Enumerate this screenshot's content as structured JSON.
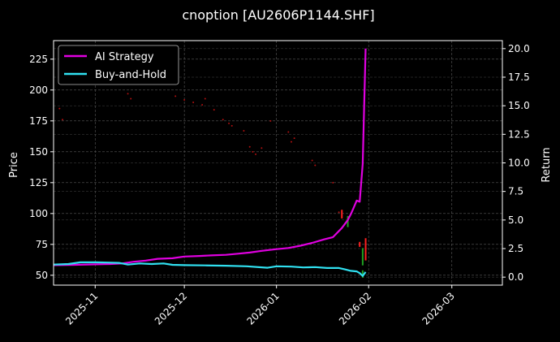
{
  "chart_data": {
    "type": "line",
    "title": "cnoption [AU2606P1144.SHF]",
    "background": "#000000",
    "ylabel_left": "Price",
    "ylabel_right": "Return",
    "ylim_left": [
      42,
      240
    ],
    "ylim_right": [
      -0.7,
      20.7
    ],
    "xlim": [
      "2025-10-18",
      "2026-03-18"
    ],
    "grid": true,
    "legend_position": "top-left",
    "yticks_left": [
      50,
      75,
      100,
      125,
      150,
      175,
      200,
      225
    ],
    "yticks_right": [
      "0.0",
      "2.5",
      "5.0",
      "7.5",
      "10.0",
      "12.5",
      "15.0",
      "17.5",
      "20.0"
    ],
    "xticks": [
      {
        "date": "2025-11-01",
        "label": "2025-11"
      },
      {
        "date": "2025-12-01",
        "label": "2025-12"
      },
      {
        "date": "2026-01-01",
        "label": "2026-01"
      },
      {
        "date": "2026-02-01",
        "label": "2026-02"
      },
      {
        "date": "2026-03-01",
        "label": "2026-03"
      }
    ],
    "series": [
      {
        "name": "AI Strategy",
        "axis": "right",
        "color": "#e000e0",
        "points": [
          [
            "2025-10-18",
            1.05
          ],
          [
            "2025-10-25",
            1.08
          ],
          [
            "2025-11-01",
            1.12
          ],
          [
            "2025-11-06",
            1.15
          ],
          [
            "2025-11-10",
            1.2
          ],
          [
            "2025-11-14",
            1.35
          ],
          [
            "2025-11-18",
            1.45
          ],
          [
            "2025-11-22",
            1.6
          ],
          [
            "2025-11-27",
            1.65
          ],
          [
            "2025-12-01",
            1.8
          ],
          [
            "2025-12-06",
            1.85
          ],
          [
            "2025-12-10",
            1.9
          ],
          [
            "2025-12-15",
            1.95
          ],
          [
            "2025-12-19",
            2.05
          ],
          [
            "2025-12-23",
            2.15
          ],
          [
            "2025-12-27",
            2.3
          ],
          [
            "2026-01-01",
            2.45
          ],
          [
            "2026-01-05",
            2.55
          ],
          [
            "2026-01-09",
            2.75
          ],
          [
            "2026-01-13",
            3.0
          ],
          [
            "2026-01-17",
            3.3
          ],
          [
            "2026-01-20",
            3.5
          ],
          [
            "2026-01-23",
            4.3
          ],
          [
            "2026-01-25",
            5.0
          ],
          [
            "2026-01-26",
            5.5
          ],
          [
            "2026-01-27",
            6.1
          ],
          [
            "2026-01-28",
            6.7
          ],
          [
            "2026-01-29",
            6.6
          ],
          [
            "2026-01-30",
            9.9
          ],
          [
            "2026-01-31",
            20.0
          ]
        ]
      },
      {
        "name": "Buy-and-Hold",
        "axis": "right",
        "color": "#30e0f0",
        "points": [
          [
            "2025-10-18",
            1.1
          ],
          [
            "2025-10-23",
            1.15
          ],
          [
            "2025-10-27",
            1.3
          ],
          [
            "2025-11-01",
            1.3
          ],
          [
            "2025-11-05",
            1.28
          ],
          [
            "2025-11-09",
            1.25
          ],
          [
            "2025-11-12",
            1.1
          ],
          [
            "2025-11-16",
            1.2
          ],
          [
            "2025-11-20",
            1.15
          ],
          [
            "2025-11-24",
            1.2
          ],
          [
            "2025-11-27",
            1.08
          ],
          [
            "2025-12-01",
            1.05
          ],
          [
            "2025-12-08",
            1.03
          ],
          [
            "2025-12-15",
            1.0
          ],
          [
            "2025-12-22",
            0.95
          ],
          [
            "2025-12-29",
            0.82
          ],
          [
            "2026-01-01",
            0.95
          ],
          [
            "2026-01-06",
            0.92
          ],
          [
            "2026-01-10",
            0.85
          ],
          [
            "2026-01-14",
            0.88
          ],
          [
            "2026-01-18",
            0.8
          ],
          [
            "2026-01-22",
            0.8
          ],
          [
            "2026-01-24",
            0.68
          ],
          [
            "2026-01-26",
            0.55
          ],
          [
            "2026-01-28",
            0.5
          ],
          [
            "2026-01-29",
            0.35
          ],
          [
            "2026-01-30",
            0.1
          ],
          [
            "2026-01-31",
            0.45
          ]
        ]
      }
    ],
    "candles": [
      {
        "date": "2026-01-23",
        "low": 96,
        "high": 103,
        "color": "#ff2020"
      },
      {
        "date": "2026-01-25",
        "low": 89,
        "high": 98,
        "color": "#20a020"
      },
      {
        "date": "2026-01-29",
        "low": 73,
        "high": 77,
        "color": "#ff2020"
      },
      {
        "date": "2026-01-30",
        "low": 58,
        "high": 72,
        "color": "#20a020"
      },
      {
        "date": "2026-01-30",
        "low": 48,
        "high": 54,
        "color": "#20a020"
      },
      {
        "date": "2026-01-31",
        "low": 62,
        "high": 80,
        "color": "#ff2020"
      }
    ],
    "price_dots": [
      {
        "date": "2025-10-20",
        "y": 185
      },
      {
        "date": "2025-10-21",
        "y": 176
      },
      {
        "date": "2025-11-12",
        "y": 197
      },
      {
        "date": "2025-11-13",
        "y": 193
      },
      {
        "date": "2025-11-28",
        "y": 195
      },
      {
        "date": "2025-12-01",
        "y": 192
      },
      {
        "date": "2025-12-04",
        "y": 190
      },
      {
        "date": "2025-12-07",
        "y": 188
      },
      {
        "date": "2025-12-08",
        "y": 193
      },
      {
        "date": "2025-12-11",
        "y": 184
      },
      {
        "date": "2025-12-14",
        "y": 176
      },
      {
        "date": "2025-12-16",
        "y": 173
      },
      {
        "date": "2025-12-17",
        "y": 171
      },
      {
        "date": "2025-12-21",
        "y": 167
      },
      {
        "date": "2025-12-23",
        "y": 154
      },
      {
        "date": "2025-12-24",
        "y": 150
      },
      {
        "date": "2025-12-25",
        "y": 148
      },
      {
        "date": "2025-12-27",
        "y": 153
      },
      {
        "date": "2025-12-30",
        "y": 175
      },
      {
        "date": "2026-01-05",
        "y": 166
      },
      {
        "date": "2026-01-06",
        "y": 158
      },
      {
        "date": "2026-01-07",
        "y": 161
      },
      {
        "date": "2026-01-13",
        "y": 143
      },
      {
        "date": "2026-01-14",
        "y": 139
      },
      {
        "date": "2026-01-20",
        "y": 125
      },
      {
        "date": "2026-01-22",
        "y": 101
      }
    ]
  }
}
